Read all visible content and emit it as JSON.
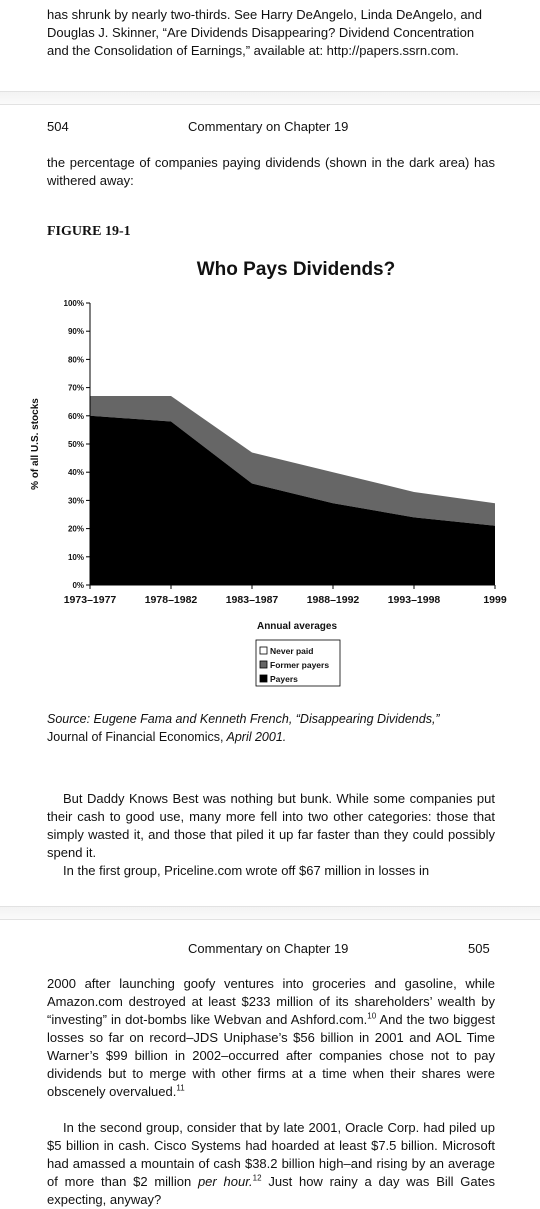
{
  "top_fragment": {
    "lines": [
      "has shrunk by nearly two-thirds. See Harry DeAngelo, Linda DeAngelo, and",
      "Douglas J. Skinner, “Are Dividends Disappearing? Dividend Concentration",
      "and the Consolidation of Earnings,” available at: http://papers.ssrn.com."
    ]
  },
  "page504": {
    "page_number": "504",
    "running_head": "Commentary on Chapter 19",
    "intro": "the percentage of companies paying dividends (shown in the dark area) has withered away:",
    "figure_label": "FIGURE 19-1",
    "source_italic_1": "Source: Eugene Fama and Kenneth French, “Disappearing Dividends,”",
    "source_roman": "Journal of Financial Economics,",
    "source_italic_2": " April 2001.",
    "para1": "But Daddy Knows Best was nothing but bunk. While some companies put their cash to good use, many more fell into two other categories: those that simply wasted it, and those that piled it up far faster than they could possibly spend it.",
    "para2": "In the first group, Priceline.com wrote off $67 million in losses in"
  },
  "page505": {
    "page_number": "505",
    "running_head": "Commentary on Chapter 19",
    "para1_a": "2000 after launching goofy ventures into groceries and gasoline, while Amazon.com destroyed at least $233 million of its shareholders’ wealth by “investing” in dot-bombs like Webvan and Ashford.com.",
    "note10": "10",
    "para1_b": " And the two biggest losses so far on record–JDS Uniphase’s $56 billion in 2001 and AOL Time Warner’s $99 billion in 2002–occurred after companies chose not to pay dividends but to merge with other firms at a time when their shares were obscenely overvalued.",
    "note11": "11",
    "para2_a": "In the second group, consider that by late 2001, Oracle Corp. had piled up $5 billion in cash. Cisco Systems had hoarded at least $7.5 billion. Microsoft had amassed a mountain of cash $38.2 billion high–and rising by an average of more than $2 million ",
    "para2_em": "per hour.",
    "note12": "12",
    "para2_b": " Just how rainy a day was Bill Gates expecting, anyway?"
  },
  "chart_data": {
    "type": "area",
    "title": "Who Pays Dividends?",
    "xlabel": "Annual averages",
    "ylabel": "% of all U.S. stocks",
    "x_ticks": [
      "1973–1977",
      "1978–1982",
      "1983–1987",
      "1988–1992",
      "1993–1998",
      "1999"
    ],
    "y_ticks": [
      "0%",
      "10%",
      "20%",
      "30%",
      "40%",
      "50%",
      "60%",
      "70%",
      "80%",
      "90%",
      "100%"
    ],
    "ylim": [
      0,
      100
    ],
    "stacked": true,
    "series": [
      {
        "name": "Payers",
        "color": "#000000",
        "values": [
          60,
          58,
          36,
          29,
          24,
          21
        ]
      },
      {
        "name": "Former payers",
        "color": "#666666",
        "values": [
          7,
          9,
          11,
          11,
          9,
          8
        ]
      },
      {
        "name": "Never paid",
        "color": "#ffffff",
        "values": [
          33,
          33,
          53,
          60,
          67,
          71
        ]
      }
    ],
    "legend_position": "bottom-center",
    "grid": false
  }
}
